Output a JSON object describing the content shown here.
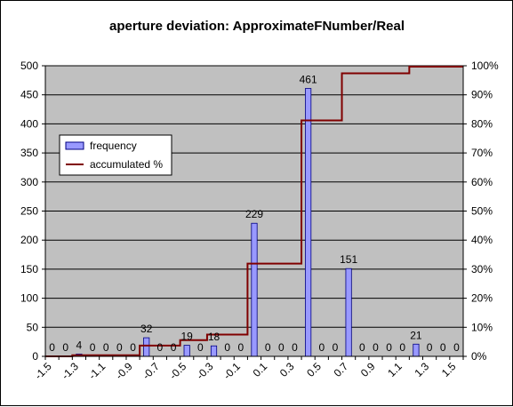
{
  "chart_data": {
    "type": "bar",
    "title": "aperture deviation: ApproximateFNumber/Real",
    "x": [
      -1.5,
      -1.4,
      -1.3,
      -1.2,
      -1.1,
      -1.0,
      -0.9,
      -0.8,
      -0.7,
      -0.6,
      -0.5,
      -0.4,
      -0.3,
      -0.2,
      -0.1,
      0.0,
      0.1,
      0.2,
      0.3,
      0.4,
      0.5,
      0.6,
      0.7,
      0.8,
      0.9,
      1.0,
      1.1,
      1.2,
      1.3,
      1.4,
      1.5
    ],
    "x_tick_labels": [
      "-1.5",
      "-1.3",
      "-1.1",
      "-0.9",
      "-0.7",
      "-0.5",
      "-0.3",
      "-0.1",
      "0.1",
      "0.3",
      "0.5",
      "0.7",
      "0.9",
      "1.1",
      "1.3",
      "1.5"
    ],
    "series": [
      {
        "name": "frequency",
        "type": "bar",
        "axis": "left",
        "color": "#9999FF",
        "values": [
          0,
          0,
          4,
          0,
          0,
          0,
          0,
          32,
          0,
          0,
          19,
          0,
          18,
          0,
          0,
          229,
          0,
          0,
          0,
          461,
          0,
          0,
          151,
          0,
          0,
          0,
          0,
          21,
          0,
          0,
          0
        ],
        "data_labels": [
          "0",
          "0",
          "4",
          "0",
          "0",
          "0",
          "0",
          "32",
          "0",
          "0",
          "19",
          "0",
          "18",
          "0",
          "0",
          "229",
          "0",
          "0",
          "0",
          "461",
          "0",
          "0",
          "151",
          "0",
          "0",
          "0",
          "0",
          "21",
          "0",
          "0",
          "0"
        ]
      },
      {
        "name": "accumulated %",
        "type": "step-line",
        "axis": "right",
        "color": "#800000",
        "values": [
          0,
          0,
          0.4,
          0.4,
          0.4,
          0.4,
          0.4,
          3.7,
          3.7,
          3.7,
          5.6,
          5.6,
          7.5,
          7.5,
          7.5,
          31.9,
          31.9,
          31.9,
          31.9,
          81.2,
          81.2,
          81.2,
          97.4,
          97.4,
          97.4,
          97.4,
          97.4,
          99.7,
          99.7,
          99.7,
          99.7
        ]
      }
    ],
    "ylim_left": [
      0,
      500
    ],
    "yticks_left": [
      "0",
      "50",
      "100",
      "150",
      "200",
      "250",
      "300",
      "350",
      "400",
      "450",
      "500"
    ],
    "ylim_right": [
      0,
      100
    ],
    "yticks_right": [
      "0%",
      "10%",
      "20%",
      "30%",
      "40%",
      "50%",
      "60%",
      "70%",
      "80%",
      "90%",
      "100%"
    ],
    "xlabel": "",
    "ylabel": "",
    "grid": "horizontal",
    "plot_background": "#C0C0C0",
    "legend_position": "left",
    "legend": [
      {
        "label": "frequency",
        "color": "#9999FF",
        "kind": "bar"
      },
      {
        "label": "accumulated %",
        "color": "#800000",
        "kind": "line"
      }
    ]
  }
}
